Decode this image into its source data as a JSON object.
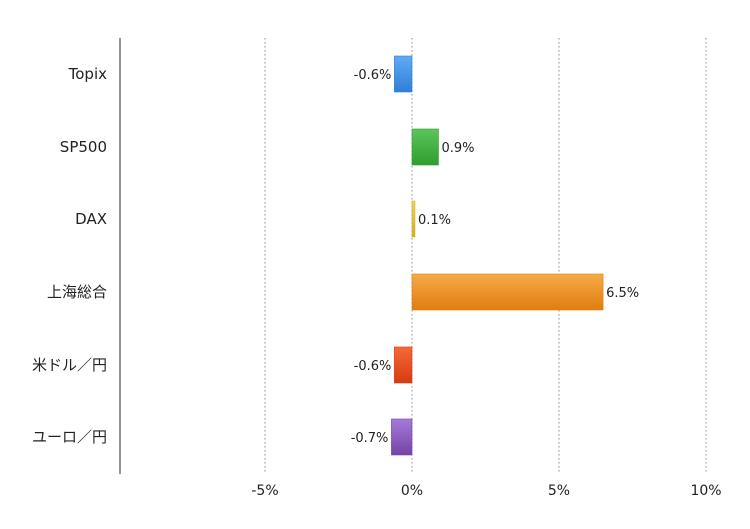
{
  "chart_data": {
    "type": "bar",
    "orientation": "horizontal",
    "title": "",
    "xlabel": "",
    "ylabel": "",
    "xlim": [
      -10,
      10
    ],
    "grid": true,
    "legend": "none",
    "categories": [
      "Topix",
      "SP500",
      "DAX",
      "上海総合",
      "米ドル／円",
      "ユーロ／円"
    ],
    "values": [
      -0.6,
      0.9,
      0.1,
      6.5,
      -0.6,
      -0.7
    ],
    "data_labels": [
      "-0.6%",
      "0.9%",
      "0.1%",
      "6.5%",
      "-0.6%",
      "-0.7%"
    ],
    "colors": [
      [
        "#2f7fd7",
        "#62abf2"
      ],
      [
        "#2f9e2f",
        "#5cc45c"
      ],
      [
        "#d6ab1e",
        "#f0d35d"
      ],
      [
        "#e07d10",
        "#f6aa48"
      ],
      [
        "#d73a12",
        "#f56a39"
      ],
      [
        "#7444a6",
        "#a67ad8"
      ]
    ],
    "ticks": [
      -5,
      0,
      5,
      10
    ],
    "tick_labels": [
      "-5%",
      "0%",
      "5%",
      "10%"
    ]
  }
}
